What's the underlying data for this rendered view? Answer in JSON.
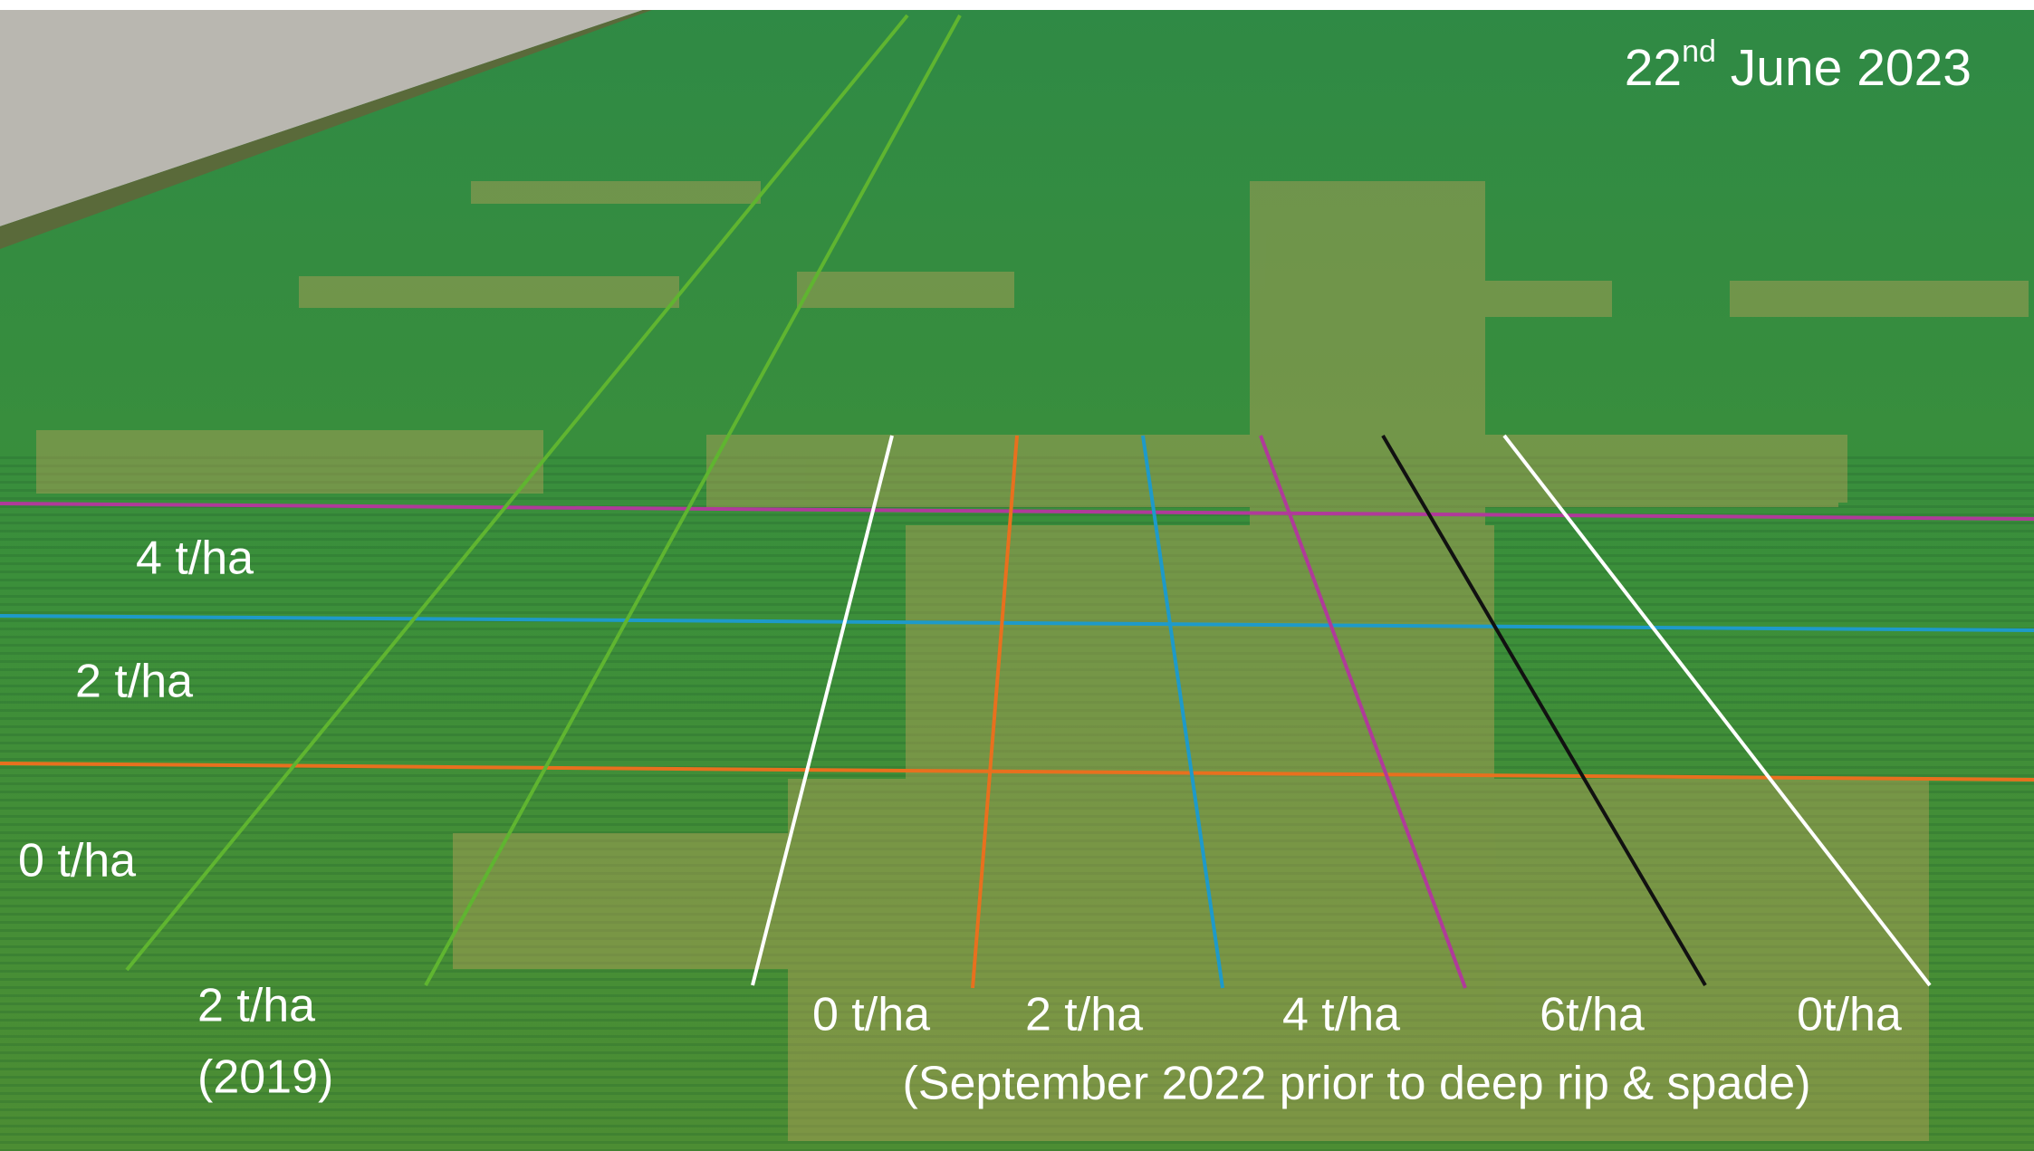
{
  "date": {
    "day": "22",
    "suffix": "nd",
    "rest": " June 2023"
  },
  "row_labels": [
    "4 t/ha",
    "2 t/ha",
    "0 t/ha"
  ],
  "previous_treatment": {
    "rate": "2 t/ha",
    "year": "(2019)"
  },
  "column_labels": [
    "0 t/ha",
    "2 t/ha",
    "4 t/ha",
    "6t/ha",
    "0t/ha"
  ],
  "column_caption": "(September 2022 prior to deep rip & spade)"
}
